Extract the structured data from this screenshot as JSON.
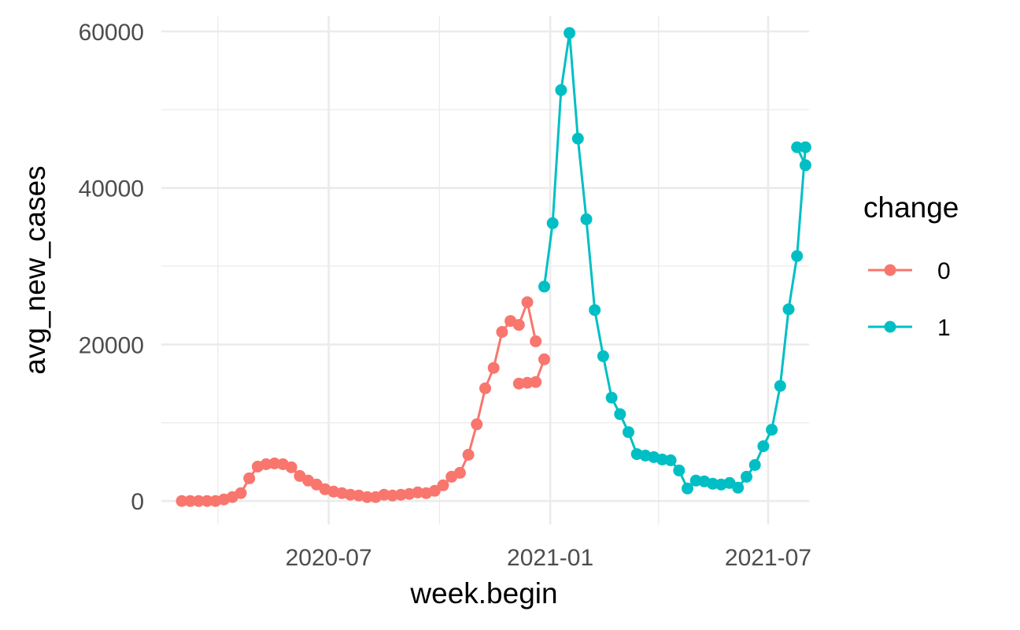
{
  "chart_data": {
    "type": "line",
    "xlabel": "week.begin",
    "ylabel": "avg_new_cases",
    "x_scale": "date",
    "xlim": [
      "2020-02-13",
      "2021-08-04"
    ],
    "ylim": [
      -3000,
      62000
    ],
    "x_ticks": [
      "2020-07-01",
      "2021-01-01",
      "2021-07-01"
    ],
    "x_tick_labels": [
      "2020-07",
      "2021-01",
      "2021-07"
    ],
    "y_ticks": [
      0,
      20000,
      40000,
      60000
    ],
    "y_tick_labels": [
      "0",
      "20000",
      "40000",
      "60000"
    ],
    "grid": true,
    "legend": {
      "title": "change",
      "position": "right"
    },
    "series": [
      {
        "name": "0",
        "color": "#F8766D",
        "x": [
          "2020-03-01",
          "2020-03-08",
          "2020-03-15",
          "2020-03-22",
          "2020-03-29",
          "2020-04-05",
          "2020-04-12",
          "2020-04-19",
          "2020-04-26",
          "2020-05-03",
          "2020-05-10",
          "2020-05-17",
          "2020-05-24",
          "2020-05-31",
          "2020-06-07",
          "2020-06-14",
          "2020-06-21",
          "2020-06-28",
          "2020-07-05",
          "2020-07-12",
          "2020-07-19",
          "2020-07-26",
          "2020-08-02",
          "2020-08-09",
          "2020-08-16",
          "2020-08-23",
          "2020-08-30",
          "2020-09-06",
          "2020-09-13",
          "2020-09-20",
          "2020-09-27",
          "2020-10-04",
          "2020-10-11",
          "2020-10-18",
          "2020-10-25",
          "2020-11-01",
          "2020-11-08",
          "2020-11-15",
          "2020-11-22",
          "2020-11-29",
          "2020-12-06",
          "2020-12-13",
          "2020-12-20"
        ],
        "y": [
          0,
          0,
          0,
          0,
          0,
          200,
          500,
          1000,
          2900,
          4400,
          4700,
          4800,
          4700,
          4300,
          3200,
          2600,
          2100,
          1500,
          1200,
          1000,
          800,
          700,
          500,
          500,
          800,
          700,
          800,
          900,
          1100,
          1000,
          1300,
          2000,
          3100,
          3600,
          5900,
          9800,
          14400,
          17000,
          21600,
          23000,
          22500,
          25400,
          20400
        ]
      },
      {
        "name": "0b",
        "color": "#F8766D",
        "legend": false,
        "x": [
          "2020-12-06",
          "2020-12-13",
          "2020-12-20",
          "2020-12-27"
        ],
        "y": [
          15000,
          15100,
          15200,
          18100
        ]
      },
      {
        "name": "1",
        "color": "#00BFC4",
        "x": [
          "2020-12-27",
          "2021-01-03",
          "2021-01-10",
          "2021-01-17",
          "2021-01-24",
          "2021-01-31",
          "2021-02-07",
          "2021-02-14",
          "2021-02-21",
          "2021-02-28",
          "2021-03-07",
          "2021-03-14",
          "2021-03-21",
          "2021-03-28",
          "2021-04-04",
          "2021-04-11",
          "2021-04-18",
          "2021-04-25",
          "2021-05-02",
          "2021-05-09",
          "2021-05-16",
          "2021-05-23",
          "2021-05-30",
          "2021-06-06",
          "2021-06-13",
          "2021-06-20",
          "2021-06-27",
          "2021-07-04",
          "2021-07-11",
          "2021-07-18",
          "2021-07-25",
          "2021-08-01"
        ],
        "y": [
          27400,
          35500,
          52500,
          59800,
          46300,
          36000,
          24400,
          18500,
          13200,
          11100,
          8800,
          6000,
          5800,
          5600,
          5300,
          5200,
          3900,
          1600,
          2600,
          2500,
          2200,
          2100,
          2300,
          1700,
          3100,
          4600,
          7000,
          9100,
          14700,
          24500,
          31300,
          45200
        ]
      },
      {
        "name": "1b",
        "color": "#00BFC4",
        "legend": false,
        "x": [
          "2021-07-25",
          "2021-08-01"
        ],
        "y": [
          45200,
          42900
        ]
      }
    ]
  }
}
